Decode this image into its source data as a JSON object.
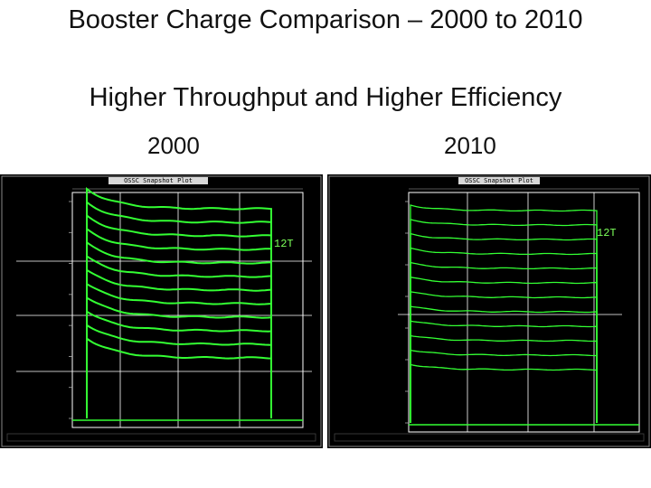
{
  "slide": {
    "title": "Booster Charge Comparison – 2000 to 2010",
    "subtitle": "Higher Throughput and Higher Efficiency",
    "year_left": "2000",
    "year_right": "2010"
  },
  "panels": [
    {
      "id": "2000",
      "window_title": "OSSC Snapshot Plot",
      "annotation": "12T",
      "plot_color": "#33ff33",
      "traces": 12
    },
    {
      "id": "2010",
      "window_title": "OSSC Snapshot Plot",
      "annotation": "12T",
      "plot_color": "#33ff33",
      "traces": 12
    }
  ],
  "colors": {
    "scope_bg": "#000000",
    "trace": "#33ff33",
    "grid": "#ffffff"
  }
}
